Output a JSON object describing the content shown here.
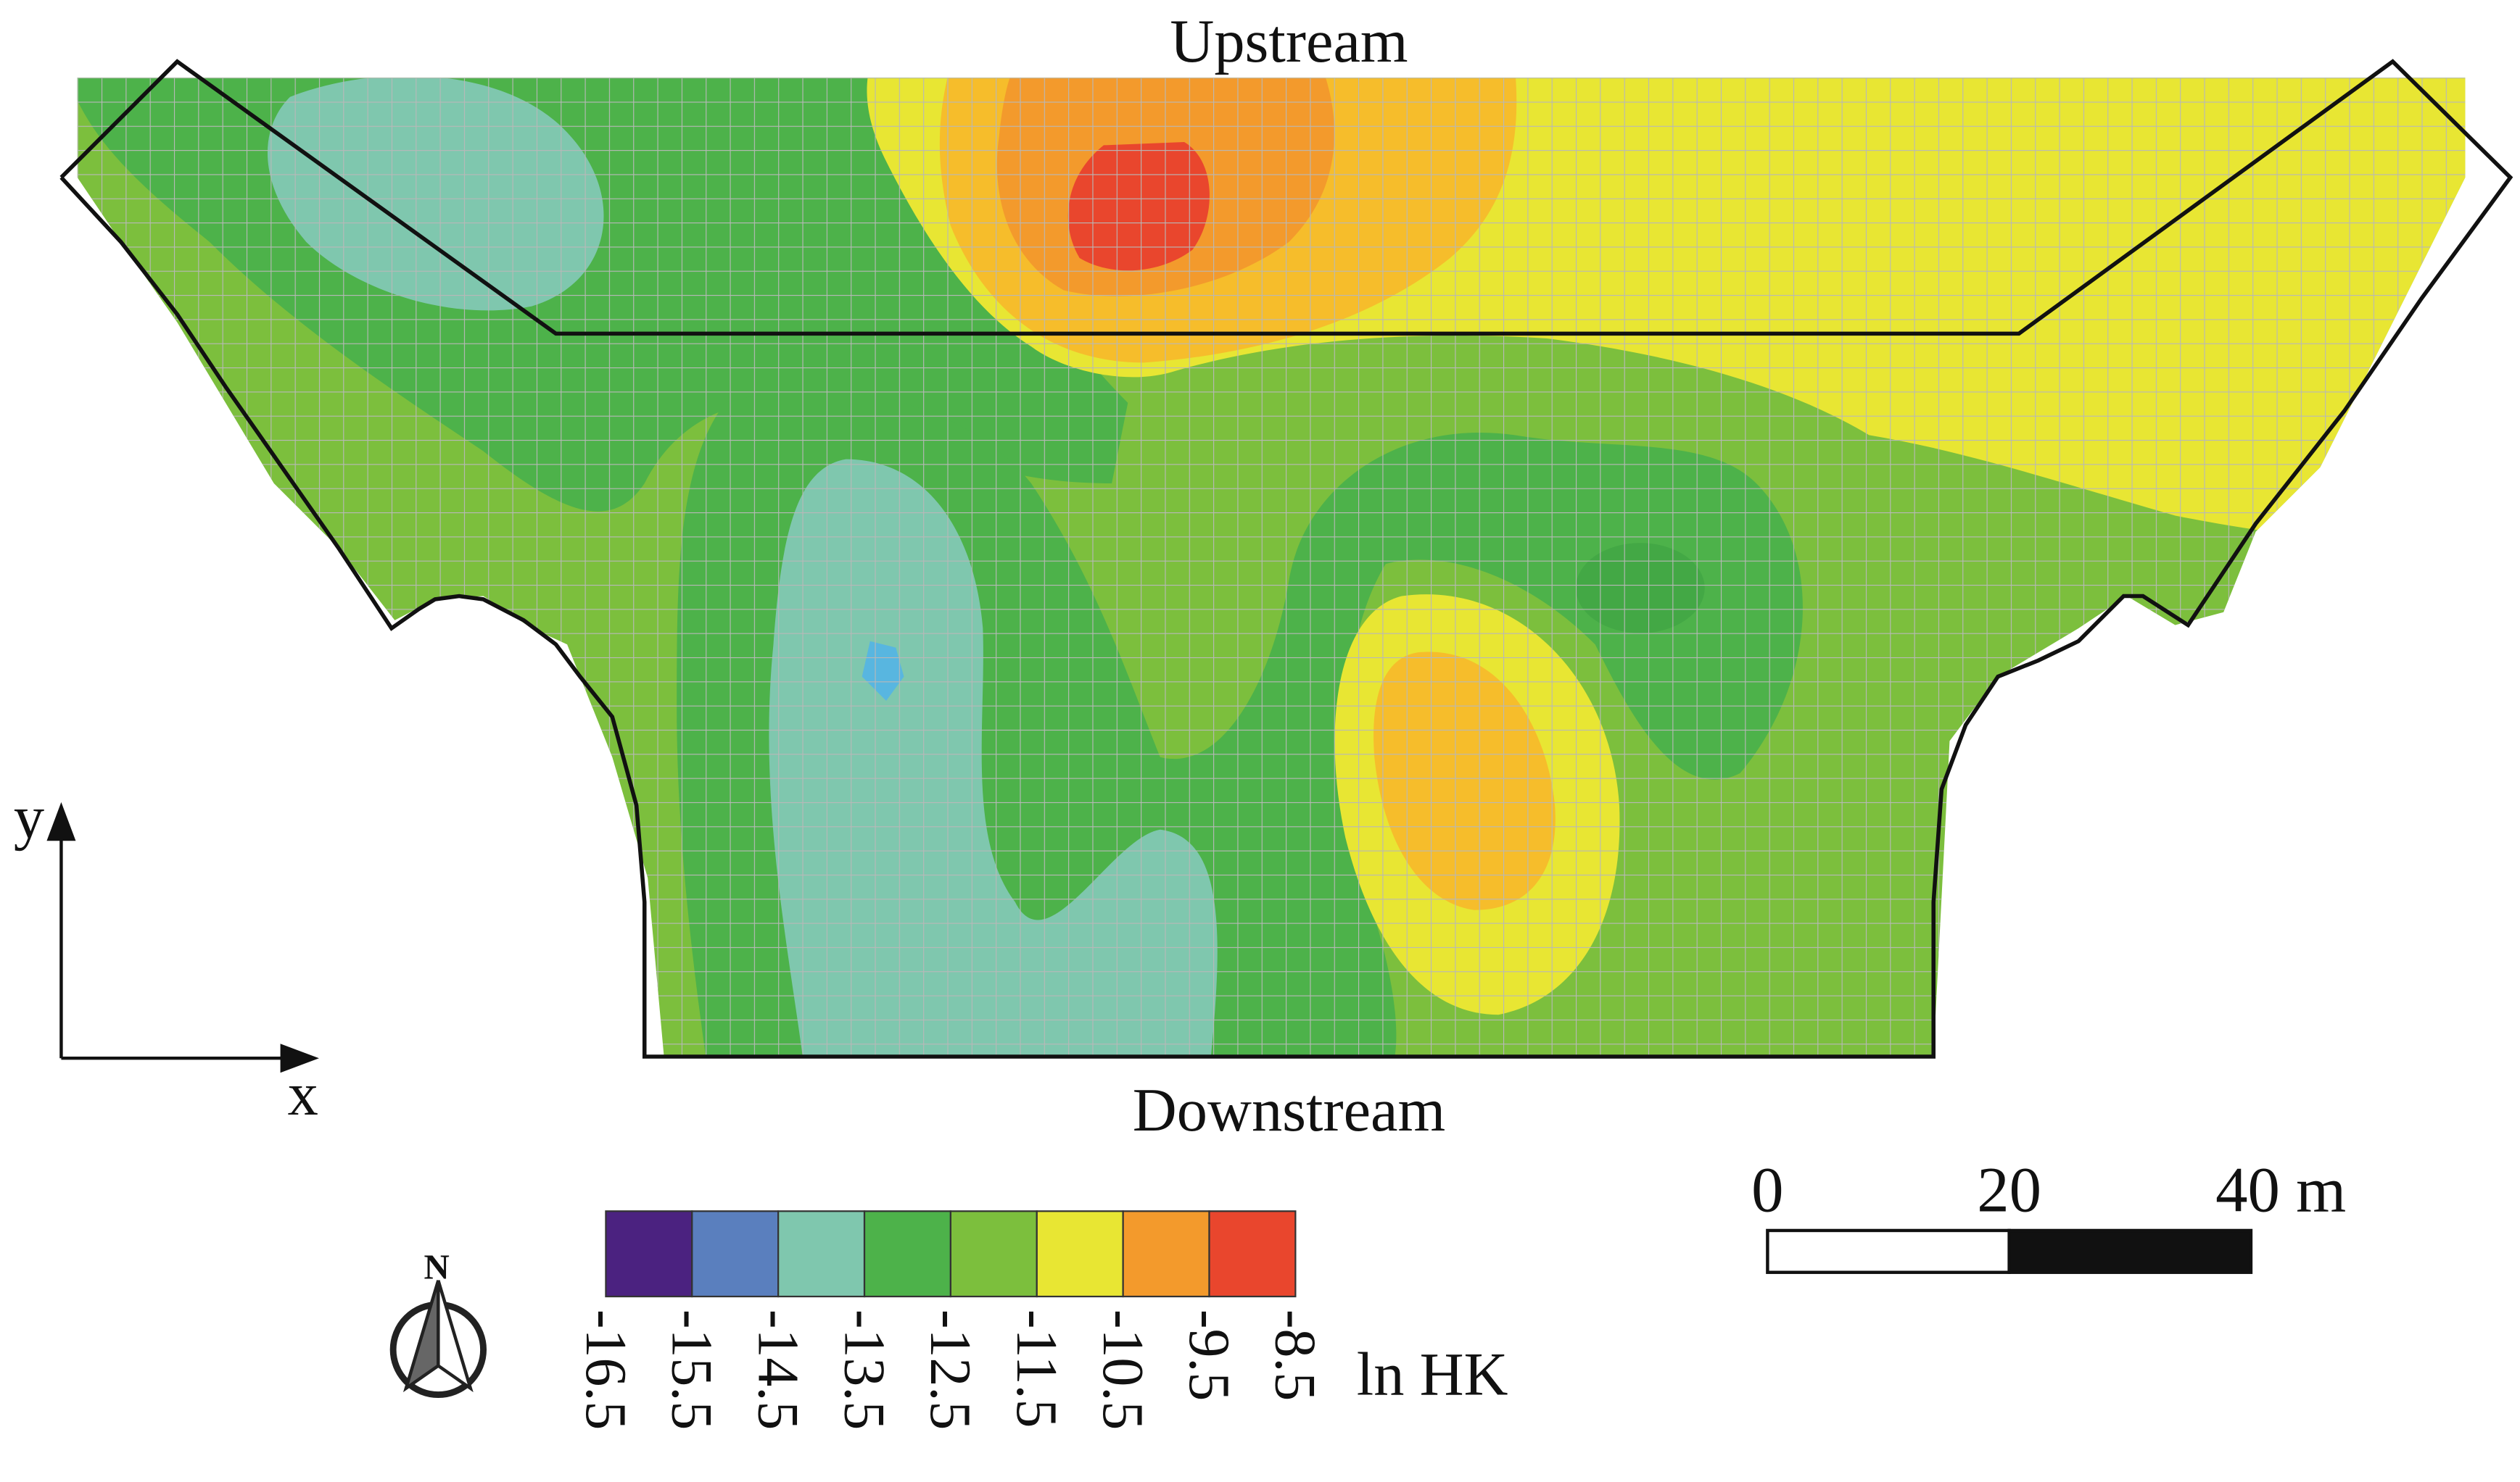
{
  "labels": {
    "upstream": "Upstream",
    "downstream": "Downstream",
    "axis_x": "x",
    "axis_y": "y",
    "north": "N"
  },
  "legend": {
    "title": "ln HK",
    "bins": [
      {
        "from": -16.5,
        "to": -15.5,
        "color": "#4b2280"
      },
      {
        "from": -15.5,
        "to": -14.5,
        "color": "#5a7fbe"
      },
      {
        "from": -14.5,
        "to": -13.5,
        "color": "#7fc7ae"
      },
      {
        "from": -13.5,
        "to": -12.5,
        "color": "#4db24a"
      },
      {
        "from": -12.5,
        "to": -11.5,
        "color": "#7cbf3d"
      },
      {
        "from": -11.5,
        "to": -10.5,
        "color": "#e8e633"
      },
      {
        "from": -10.5,
        "to": -9.5,
        "color": "#f39a2c"
      },
      {
        "from": -9.5,
        "to": -8.5,
        "color": "#e9462d"
      }
    ],
    "ticks": [
      "-16.5",
      "-15.5",
      "-14.5",
      "-13.5",
      "-12.5",
      "-11.5",
      "-10.5",
      "-9.5",
      "-8.5"
    ]
  },
  "scale_bar": {
    "ticks": [
      "0",
      "20",
      "40 m"
    ],
    "segments": [
      {
        "from_m": 0,
        "to_m": 20,
        "color": "#ffffff"
      },
      {
        "from_m": 20,
        "to_m": 40,
        "color": "#111111"
      }
    ]
  },
  "colors": {
    "outline": "#111111",
    "grid": "#b8b8b8",
    "base_field": "#7cbf3d"
  }
}
